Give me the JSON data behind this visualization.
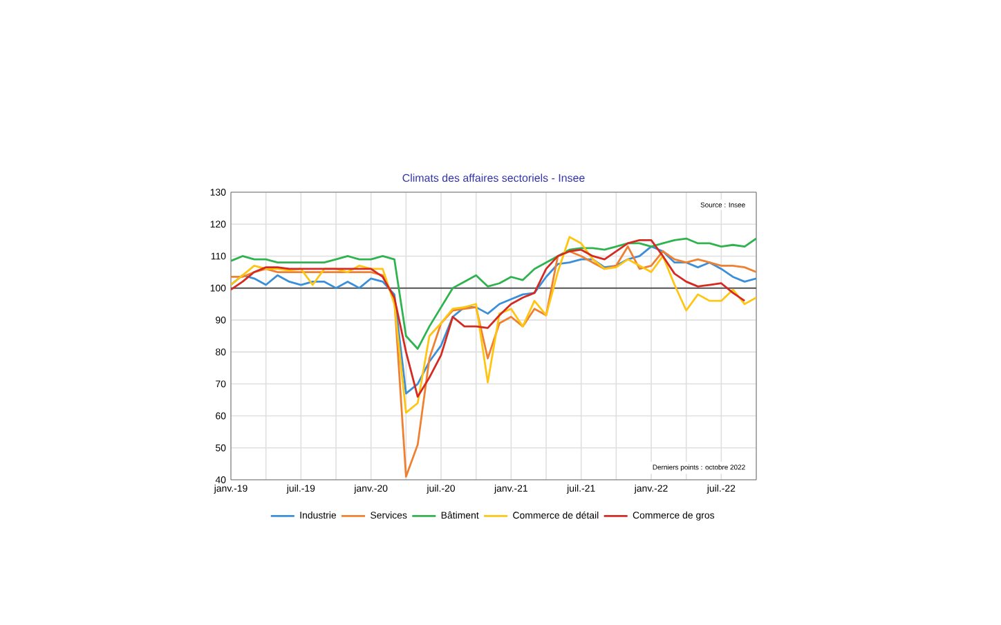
{
  "chart_data": {
    "type": "line",
    "title": "Climats des affaires sectoriels - Insee",
    "x": [
      "2019-01",
      "2019-02",
      "2019-03",
      "2019-04",
      "2019-05",
      "2019-06",
      "2019-07",
      "2019-08",
      "2019-09",
      "2019-10",
      "2019-11",
      "2019-12",
      "2020-01",
      "2020-02",
      "2020-03",
      "2020-04",
      "2020-05",
      "2020-06",
      "2020-07",
      "2020-08",
      "2020-09",
      "2020-10",
      "2020-11",
      "2020-12",
      "2021-01",
      "2021-02",
      "2021-03",
      "2021-04",
      "2021-05",
      "2021-06",
      "2021-07",
      "2021-08",
      "2021-09",
      "2021-10",
      "2021-11",
      "2021-12",
      "2022-01",
      "2022-02",
      "2022-03",
      "2022-04",
      "2022-05",
      "2022-06",
      "2022-07",
      "2022-08",
      "2022-09",
      "2022-10"
    ],
    "series": [
      {
        "name": "Industrie",
        "color": "#3a8fd8",
        "values": [
          101,
          104,
          103,
          101,
          104,
          102,
          101,
          102,
          102,
          100,
          102,
          100,
          103,
          102,
          98,
          67,
          70,
          77,
          82,
          91,
          94,
          94,
          92,
          95,
          96.5,
          98,
          98.5,
          103.5,
          107.5,
          108,
          109,
          109,
          106.5,
          107,
          109,
          110,
          113,
          111.5,
          108,
          108,
          106.5,
          108,
          106,
          103.5,
          102,
          103
        ]
      },
      {
        "name": "Services",
        "color": "#f08030",
        "values": [
          103.5,
          103.5,
          105,
          106,
          105,
          105,
          105,
          105,
          105,
          105,
          105,
          105,
          105,
          104,
          96.5,
          41,
          51,
          78,
          89,
          93,
          93.5,
          94,
          78,
          89,
          91,
          88,
          93.5,
          91.5,
          110,
          111.5,
          110,
          108,
          106,
          107,
          113,
          106,
          107,
          111.5,
          109,
          108,
          109,
          108,
          107,
          107,
          106.5,
          105
        ]
      },
      {
        "name": "Bâtiment",
        "color": "#2fb34f",
        "values": [
          108.5,
          110,
          109,
          109,
          108,
          108,
          108,
          108,
          108,
          109,
          110,
          109,
          109,
          110,
          109,
          85,
          81,
          88,
          94,
          100,
          102,
          104,
          100.5,
          101.5,
          103.5,
          102.5,
          106,
          108,
          110,
          112,
          112.5,
          112.5,
          112,
          113,
          114,
          114,
          113,
          114,
          115,
          115.5,
          114,
          114,
          113,
          113.5,
          113,
          115.5
        ]
      },
      {
        "name": "Commerce de détail",
        "color": "#ffc513",
        "values": [
          101,
          104,
          107,
          106,
          106,
          105.5,
          106,
          101,
          106,
          106,
          105,
          107,
          106,
          106,
          95,
          61,
          64,
          85,
          89,
          93.5,
          94,
          95,
          70.5,
          92,
          93.5,
          88,
          96,
          91.5,
          105,
          116,
          114,
          109,
          106,
          106.5,
          109,
          107,
          105,
          110,
          101,
          93,
          98,
          96,
          96,
          99.5,
          95,
          97
        ]
      },
      {
        "name": "Commerce de gros",
        "color": "#d42a20",
        "values": [
          99.5,
          102,
          105,
          106.5,
          106.5,
          106,
          106,
          106,
          106,
          106,
          106,
          106,
          106,
          103.5,
          97,
          80,
          66,
          72,
          79,
          91,
          88,
          88,
          87.5,
          91.5,
          95,
          97,
          98.5,
          106,
          110,
          111.5,
          112,
          110,
          109,
          111.5,
          114,
          115,
          115,
          110,
          104.5,
          102,
          100.5,
          101,
          101.5,
          98.5,
          96,
          null
        ]
      }
    ],
    "xlim": [
      "2019-01",
      "2022-10"
    ],
    "xticks": [
      {
        "value": "2019-01",
        "label": "janv.-19"
      },
      {
        "value": "2019-04",
        "label": null
      },
      {
        "value": "2019-07",
        "label": "juil.-19"
      },
      {
        "value": "2019-10",
        "label": null
      },
      {
        "value": "2020-01",
        "label": "janv.-20"
      },
      {
        "value": "2020-04",
        "label": null
      },
      {
        "value": "2020-07",
        "label": "juil.-20"
      },
      {
        "value": "2020-10",
        "label": null
      },
      {
        "value": "2021-01",
        "label": "janv.-21"
      },
      {
        "value": "2021-04",
        "label": null
      },
      {
        "value": "2021-07",
        "label": "juil.-21"
      },
      {
        "value": "2021-10",
        "label": null
      },
      {
        "value": "2022-01",
        "label": "janv.-22"
      },
      {
        "value": "2022-04",
        "label": null
      },
      {
        "value": "2022-07",
        "label": "juil.-22"
      },
      {
        "value": "2022-10",
        "label": null
      }
    ],
    "ylim": [
      40,
      130
    ],
    "yticks": [
      40,
      50,
      60,
      70,
      80,
      90,
      100,
      110,
      120,
      130
    ],
    "grid": true,
    "legend": "bottom",
    "line_style": "solid",
    "marker": "none",
    "ref_lines": [
      {
        "axis": "y",
        "value": 100,
        "color": "#555555"
      }
    ],
    "annotations": [
      "Source : Insee",
      "Derniers points : octobre 2022"
    ]
  }
}
